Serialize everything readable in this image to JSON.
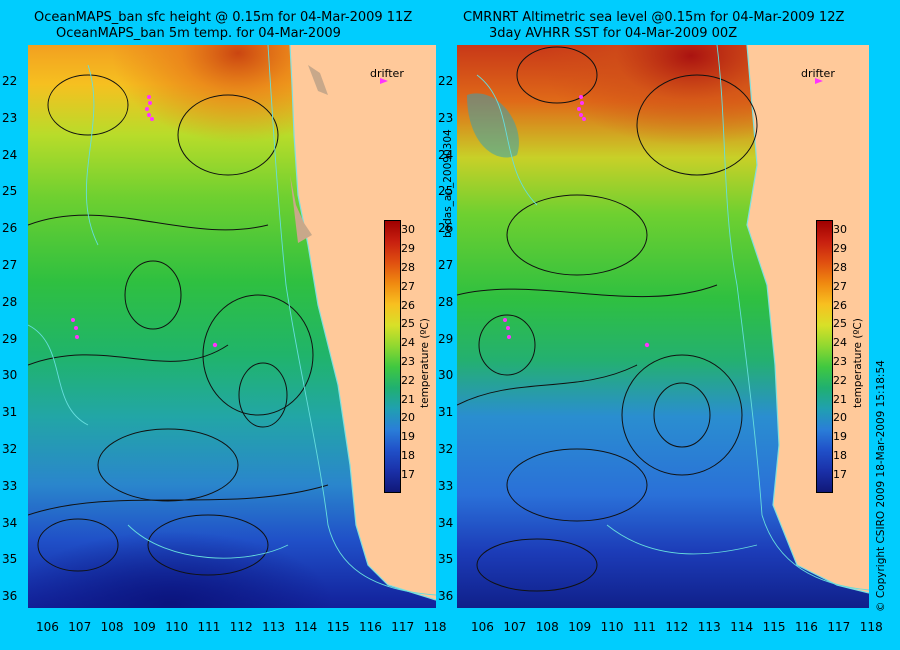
{
  "left_panel": {
    "title_line1": "OceanMAPS_ban sfc height @ 0.15m for 04-Mar-2009 11Z",
    "title_line2": "OceanMAPS_ban 5m temp. for 04-Mar-2009",
    "legend_label": "drifter"
  },
  "right_panel": {
    "title_line1": "CMRNRT Altimetric sea level  @0.15m  for 04-Mar-2009 12Z",
    "title_line2": "3day AVHRR SST for 04-Mar-2009 00Z",
    "legend_label": "drifter"
  },
  "axes": {
    "longitudes": [
      "106",
      "107",
      "108",
      "109",
      "110",
      "111",
      "112",
      "113",
      "114",
      "115",
      "116",
      "117",
      "118"
    ],
    "latitudes": [
      "22",
      "23",
      "24",
      "25",
      "26",
      "27",
      "28",
      "29",
      "30",
      "31",
      "32",
      "33",
      "34",
      "35",
      "36"
    ]
  },
  "colorbar": {
    "ticks": [
      "30",
      "29",
      "28",
      "27",
      "26",
      "25",
      "24",
      "23",
      "22",
      "21",
      "20",
      "19",
      "18",
      "17"
    ],
    "label": "temperature (ºC)",
    "vmin": 16.2,
    "vmax": 30.6
  },
  "side_text": {
    "middle": "bodas_an_20090304",
    "right": "© Copyright CSIRO 2009   18-Mar-2009 15:18:54"
  },
  "colors": {
    "background": "#00cdfe",
    "land": "#ffc99a",
    "drifter": "#ff33ff",
    "contour": "#000000",
    "coast_line": "#66dddd"
  }
}
